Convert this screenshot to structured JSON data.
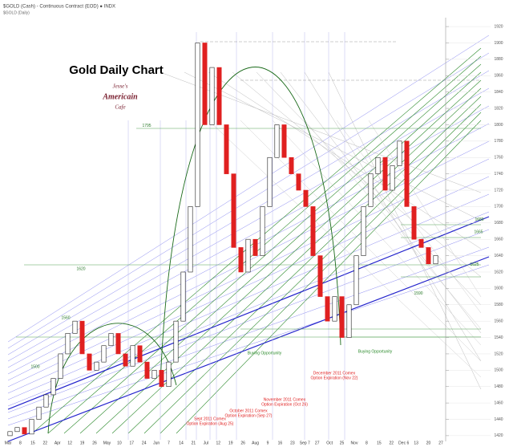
{
  "chart_data": {
    "type": "candlestick",
    "header": "$GOLD (Cash) - Continuous Contract (EOD) ● INDX",
    "subheader": "$GOLD (Daily)",
    "title": "Gold Daily Chart",
    "logo": [
      "Jesse's",
      "Americain",
      "Cafe"
    ],
    "open": [
      1420,
      1425,
      1430,
      1422,
      1440,
      1455,
      1470,
      1490,
      1520,
      1545,
      1560,
      1520,
      1500,
      1510,
      1530,
      1545,
      1520,
      1505,
      1530,
      1510,
      1490,
      1500,
      1480,
      1510,
      1560,
      1620,
      1700,
      1900,
      1800,
      1870,
      1800,
      1740,
      1650,
      1620,
      1660,
      1640,
      1700,
      1760,
      1800,
      1760,
      1740,
      1720,
      1700,
      1640,
      1590,
      1560,
      1590,
      1540,
      1580,
      1640,
      1700,
      1740,
      1760,
      1720,
      1750,
      1780,
      1700,
      1660,
      1650,
      1630
    ],
    "close": [
      1425,
      1430,
      1422,
      1440,
      1455,
      1470,
      1490,
      1520,
      1545,
      1560,
      1520,
      1500,
      1510,
      1530,
      1545,
      1520,
      1505,
      1530,
      1510,
      1490,
      1500,
      1480,
      1510,
      1560,
      1620,
      1700,
      1900,
      1800,
      1870,
      1800,
      1740,
      1650,
      1620,
      1660,
      1640,
      1700,
      1760,
      1800,
      1760,
      1740,
      1720,
      1700,
      1640,
      1590,
      1560,
      1590,
      1540,
      1580,
      1640,
      1700,
      1740,
      1760,
      1720,
      1750,
      1780,
      1700,
      1660,
      1650,
      1630,
      1640
    ],
    "up_color": "#ffffff",
    "down_color": "#e02020",
    "x_labels": [
      "Mar",
      "8",
      "15",
      "22",
      "Apr",
      "12",
      "19",
      "26",
      "May",
      "10",
      "17",
      "24",
      "Jun",
      "7",
      "14",
      "21",
      "Jul",
      "12",
      "19",
      "26",
      "Aug",
      "9",
      "16",
      "23",
      "Sep 7",
      "27",
      "Oct",
      "25",
      "Nov",
      "8",
      "15",
      "22",
      "Dec 6",
      "13",
      "20",
      "27"
    ],
    "ylim": [
      1415,
      1925
    ],
    "yticks": [
      1420,
      1440,
      1460,
      1480,
      1500,
      1520,
      1540,
      1560,
      1580,
      1600,
      1620,
      1640,
      1660,
      1680,
      1700,
      1720,
      1740,
      1760,
      1780,
      1800,
      1820,
      1840,
      1860,
      1880,
      1900,
      1920
    ],
    "grid": true,
    "levels": [
      {
        "label": "1795",
        "value": 1795
      },
      {
        "label": "1620",
        "value": 1620
      },
      {
        "label": "1560",
        "value": 1560
      },
      {
        "label": "1500",
        "value": 1500
      },
      {
        "label": "1680",
        "value": 1680
      },
      {
        "label": "1665",
        "value": 1665
      },
      {
        "label": "1625",
        "value": 1625
      },
      {
        "label": "1590",
        "value": 1590
      }
    ],
    "annotations": [
      "Buying Opportunity",
      "Buying Opportunity"
    ],
    "expirations": [
      [
        "Sept 2011 Comex",
        "Option Expiration (Aug 25)"
      ],
      [
        "October 2011 Comex",
        "Option Expiration (Sep 27)"
      ],
      [
        "November 2011 Comex",
        "Option Expiration (Oct 26)"
      ],
      [
        "December 2011 Comex",
        "Option Expiration (Nov 22)"
      ]
    ]
  }
}
